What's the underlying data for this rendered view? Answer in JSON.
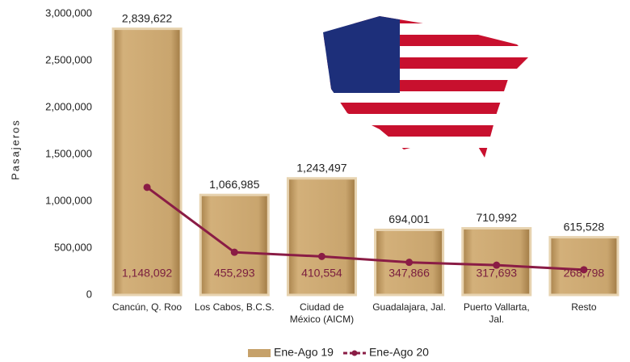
{
  "chart_data": {
    "type": "bar",
    "y_label": "Pasajeros",
    "categories": [
      "Cancún, Q. Roo",
      "Los Cabos, B.C.S.",
      "Ciudad de México (AICM)",
      "Guadalajara, Jal.",
      "Puerto Vallarta, Jal.",
      "Resto"
    ],
    "series": [
      {
        "name": "Ene-Ago 19",
        "type": "bar",
        "color": "#c6a16a",
        "values": [
          2839622,
          1066985,
          1243497,
          694001,
          710992,
          615528
        ],
        "value_labels": [
          "2,839,622",
          "1,066,985",
          "1,243,497",
          "694,001",
          "710,992",
          "615,528"
        ]
      },
      {
        "name": "Ene-Ago 20",
        "type": "line",
        "color": "#8a1c45",
        "values": [
          1148092,
          455293,
          410554,
          347866,
          317693,
          268798
        ],
        "value_labels": [
          "1,148,092",
          "455,293",
          "410,554",
          "347,866",
          "317,693",
          "268,798"
        ]
      }
    ],
    "ylim": [
      0,
      3000000
    ],
    "yticks": [
      0,
      {
        "value": 500000,
        "label": "500,000"
      },
      {
        "value": 1000000,
        "label": "1,000,000"
      },
      {
        "value": 1500000,
        "label": "1,500,000"
      },
      {
        "value": 2000000,
        "label": "2,000,000"
      },
      {
        "value": 2500000,
        "label": "2,500,000"
      },
      {
        "value": 3000000,
        "label": "3,000,000"
      }
    ],
    "legend": "bottom"
  }
}
